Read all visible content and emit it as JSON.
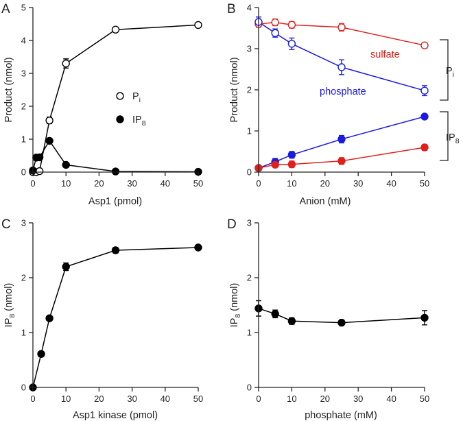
{
  "chart_data": [
    {
      "panel": "A",
      "type": "line",
      "xlabel": "Asp1 (pmol)",
      "ylabel": "Product (nmol)",
      "xlim": [
        0,
        50
      ],
      "ylim": [
        0,
        5
      ],
      "xticks": [
        "0",
        "10",
        "20",
        "30",
        "40",
        "50"
      ],
      "yticks": [
        "0",
        "1",
        "2",
        "3",
        "4",
        "5"
      ],
      "legend": [
        {
          "label": "P",
          "sub": "i",
          "marker": "open"
        },
        {
          "label": "IP",
          "sub": "8",
          "marker": "filled"
        }
      ],
      "series": [
        {
          "name": "Pi",
          "color": "#000000",
          "filled": false,
          "x": [
            0,
            1,
            2,
            5,
            10,
            25,
            50
          ],
          "y": [
            0,
            0,
            0.03,
            1.57,
            3.3,
            4.33,
            4.47
          ],
          "err": [
            0,
            0,
            0,
            0.1,
            0.14,
            0.04,
            0.04
          ]
        },
        {
          "name": "IP8",
          "color": "#000000",
          "filled": true,
          "x": [
            0,
            1,
            2,
            5,
            10,
            25,
            50
          ],
          "y": [
            0.05,
            0.44,
            0.45,
            0.95,
            0.22,
            0.02,
            0.01
          ],
          "err": [
            0,
            0,
            0,
            0,
            0,
            0,
            0
          ]
        }
      ]
    },
    {
      "panel": "B",
      "type": "line",
      "xlabel": "Anion (mM)",
      "ylabel": "Product (nmol)",
      "xlim": [
        0,
        50
      ],
      "ylim": [
        0,
        4
      ],
      "xticks": [
        "0",
        "10",
        "20",
        "30",
        "40",
        "50"
      ],
      "yticks": [
        "0",
        "1",
        "2",
        "3",
        "4"
      ],
      "annotations": {
        "sulfate": "sulfate",
        "phosphate": "phosphate"
      },
      "brackets": [
        {
          "label": "P",
          "sub": "i"
        },
        {
          "label": "IP",
          "sub": "8"
        }
      ],
      "series": [
        {
          "name": "sulfate Pi",
          "color": "#e0201b",
          "filled": false,
          "x": [
            0,
            5,
            10,
            25,
            50
          ],
          "y": [
            3.6,
            3.64,
            3.58,
            3.52,
            3.08
          ],
          "err": [
            0.08,
            0.08,
            0.08,
            0.09,
            0.06
          ]
        },
        {
          "name": "phosphate Pi",
          "color": "#1a1ae0",
          "filled": false,
          "x": [
            0,
            5,
            10,
            25,
            50
          ],
          "y": [
            3.65,
            3.38,
            3.12,
            2.55,
            1.98
          ],
          "err": [
            0.12,
            0.1,
            0.14,
            0.18,
            0.12
          ]
        },
        {
          "name": "phosphate IP8",
          "color": "#1a1ae0",
          "filled": true,
          "x": [
            0,
            5,
            10,
            25,
            50
          ],
          "y": [
            0.1,
            0.25,
            0.42,
            0.8,
            1.35
          ],
          "err": [
            0.03,
            0.08,
            0.08,
            0.09,
            0.04
          ]
        },
        {
          "name": "sulfate IP8",
          "color": "#e0201b",
          "filled": true,
          "x": [
            0,
            5,
            10,
            25,
            50
          ],
          "y": [
            0.1,
            0.18,
            0.19,
            0.27,
            0.6
          ],
          "err": [
            0.03,
            0.06,
            0.08,
            0.08,
            0.07
          ]
        }
      ]
    },
    {
      "panel": "C",
      "type": "line",
      "xlabel": "Asp1 kinase (pmol)",
      "ylabel": "IP",
      "ylabel_sub": "8",
      "ylabel_unit": " (nmol)",
      "xlim": [
        0,
        50
      ],
      "ylim": [
        0,
        3
      ],
      "xticks": [
        "0",
        "10",
        "20",
        "30",
        "40",
        "50"
      ],
      "yticks": [
        "0",
        "1",
        "2",
        "3"
      ],
      "series": [
        {
          "name": "IP8",
          "color": "#000000",
          "filled": true,
          "x": [
            0,
            2.5,
            5,
            10,
            25,
            50
          ],
          "y": [
            0,
            0.61,
            1.26,
            2.2,
            2.5,
            2.55
          ],
          "err": [
            0,
            0,
            0,
            0.07,
            0.05,
            0.03
          ]
        }
      ]
    },
    {
      "panel": "D",
      "type": "line",
      "xlabel": "phosphate  (mM)",
      "ylabel": "IP",
      "ylabel_sub": "8",
      "ylabel_unit": " (nmol)",
      "xlim": [
        0,
        50
      ],
      "ylim": [
        0,
        3
      ],
      "xticks": [
        "0",
        "10",
        "20",
        "30",
        "40",
        "50"
      ],
      "yticks": [
        "0",
        "1",
        "2",
        "3"
      ],
      "series": [
        {
          "name": "IP8",
          "color": "#000000",
          "filled": true,
          "x": [
            0,
            5,
            10,
            25,
            50
          ],
          "y": [
            1.44,
            1.34,
            1.21,
            1.18,
            1.27
          ],
          "err": [
            0.14,
            0.07,
            0.06,
            0.05,
            0.13
          ]
        }
      ]
    }
  ]
}
